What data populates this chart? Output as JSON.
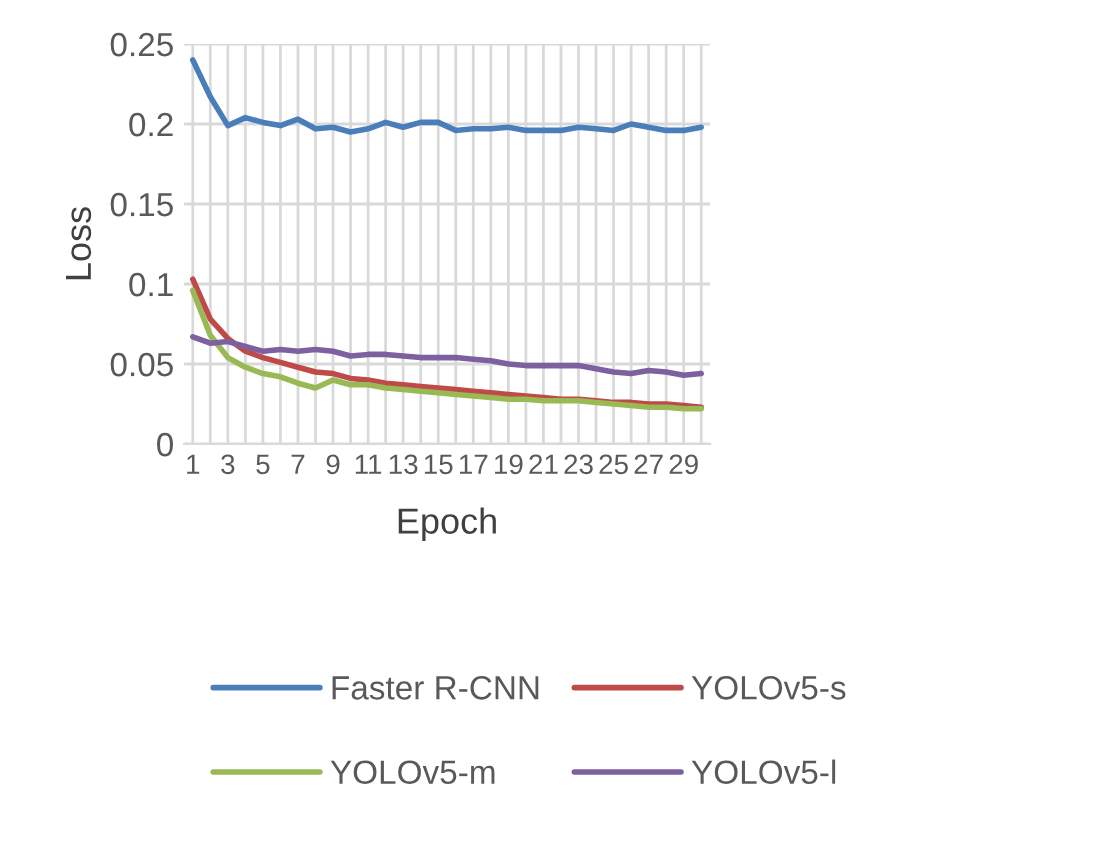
{
  "chart_data": {
    "type": "line",
    "xlabel": "Epoch",
    "ylabel": "Loss",
    "categories": [
      "1",
      null,
      "3",
      null,
      "5",
      null,
      "7",
      null,
      "9",
      null,
      "11",
      null,
      "13",
      null,
      "15",
      null,
      "17",
      null,
      "19",
      null,
      "21",
      null,
      "23",
      null,
      "25",
      null,
      "27",
      null,
      "29",
      null
    ],
    "series": [
      {
        "name": "Faster R-CNN",
        "color": "#4a7ebb",
        "values": [
          0.24,
          0.217,
          0.199,
          0.204,
          0.201,
          0.199,
          0.203,
          0.197,
          0.198,
          0.195,
          0.197,
          0.201,
          0.198,
          0.201,
          0.201,
          0.196,
          0.197,
          0.197,
          0.198,
          0.196,
          0.196,
          0.196,
          0.198,
          0.197,
          0.196,
          0.2,
          0.198,
          0.196,
          0.196,
          0.198
        ]
      },
      {
        "name": "YOLOv5-s",
        "color": "#be4b48",
        "values": [
          0.103,
          0.078,
          0.066,
          0.058,
          0.054,
          0.051,
          0.048,
          0.045,
          0.044,
          0.041,
          0.04,
          0.038,
          0.037,
          0.036,
          0.035,
          0.034,
          0.033,
          0.032,
          0.031,
          0.03,
          0.029,
          0.028,
          0.028,
          0.027,
          0.026,
          0.026,
          0.025,
          0.025,
          0.024,
          0.023
        ]
      },
      {
        "name": "YOLOv5-m",
        "color": "#98b954",
        "values": [
          0.096,
          0.068,
          0.054,
          0.048,
          0.044,
          0.042,
          0.038,
          0.035,
          0.04,
          0.037,
          0.037,
          0.035,
          0.034,
          0.033,
          0.032,
          0.031,
          0.03,
          0.029,
          0.028,
          0.028,
          0.027,
          0.027,
          0.027,
          0.026,
          0.025,
          0.024,
          0.023,
          0.023,
          0.022,
          0.022
        ]
      },
      {
        "name": "YOLOv5-l",
        "color": "#7d60a0",
        "values": [
          0.067,
          0.063,
          0.064,
          0.061,
          0.058,
          0.059,
          0.058,
          0.059,
          0.058,
          0.055,
          0.056,
          0.056,
          0.055,
          0.054,
          0.054,
          0.054,
          0.053,
          0.052,
          0.05,
          0.049,
          0.049,
          0.049,
          0.049,
          0.047,
          0.045,
          0.044,
          0.046,
          0.045,
          0.043,
          0.044
        ]
      }
    ],
    "ylim": [
      0,
      0.25
    ],
    "yticks": [
      0,
      0.05,
      0.1,
      0.15,
      0.2,
      0.25
    ],
    "grid": true,
    "legend": "bottom",
    "marker": "none",
    "line_style": "solid"
  }
}
